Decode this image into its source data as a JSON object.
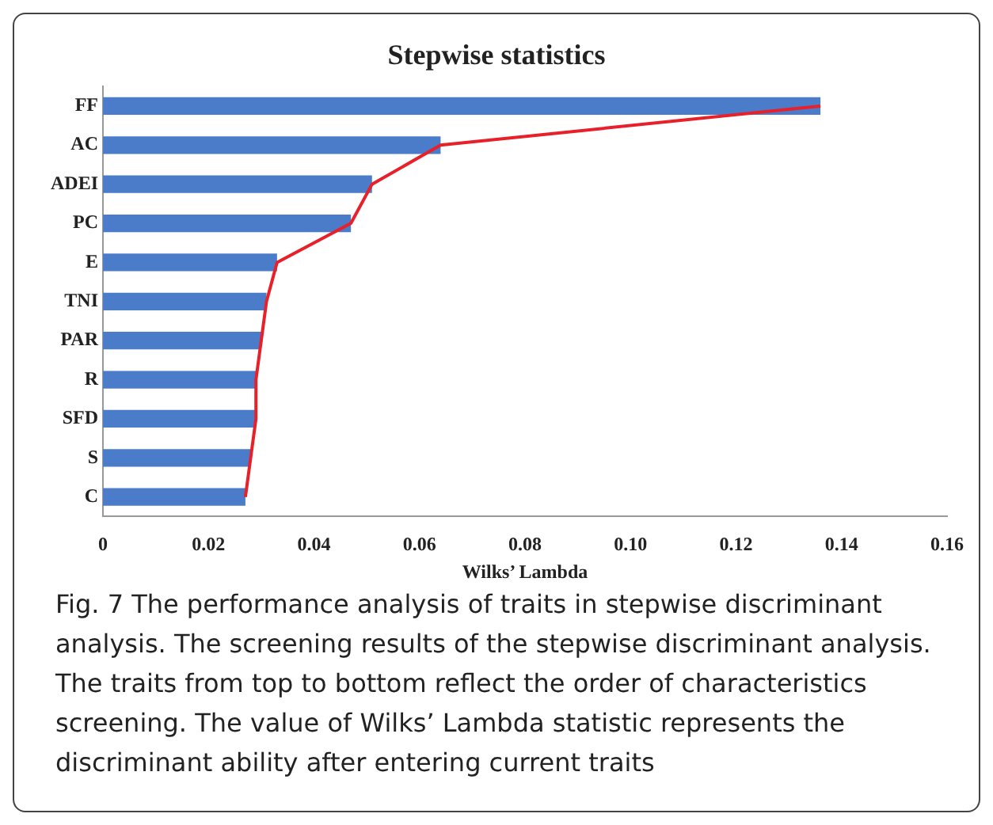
{
  "chart_data": {
    "type": "bar",
    "orientation": "horizontal",
    "title": "Stepwise statistics",
    "xlabel": "Wilks’ Lambda",
    "categories": [
      "FF",
      "AC",
      "ADEI",
      "PC",
      "E",
      "TNI",
      "PAR",
      "R",
      "SFD",
      "S",
      "C"
    ],
    "series": [
      {
        "color": "#4a7cc9",
        "values": [
          0.136,
          0.064,
          0.051,
          0.047,
          0.033,
          0.031,
          0.03,
          0.029,
          0.029,
          0.028,
          0.027
        ]
      },
      {
        "type": "line",
        "color": "#e8202a",
        "values": [
          0.136,
          0.064,
          0.051,
          0.047,
          0.033,
          0.031,
          0.03,
          0.029,
          0.029,
          0.028,
          0.027
        ]
      }
    ],
    "xlim": [
      0,
      0.16
    ],
    "xticks": [
      {
        "value": 0,
        "label": "0"
      },
      {
        "value": 0.02,
        "label": "0.02"
      },
      {
        "value": 0.04,
        "label": "0.04"
      },
      {
        "value": 0.06,
        "label": "0.06"
      },
      {
        "value": 0.08,
        "label": "0.08"
      },
      {
        "value": 0.1,
        "label": "0.10"
      },
      {
        "value": 0.12,
        "label": "0.12"
      },
      {
        "value": 0.14,
        "label": "0.14"
      },
      {
        "value": 0.16,
        "label": "0.16"
      }
    ],
    "grid": false,
    "legend": false,
    "marker": "none",
    "annotations": [
      "Fig. 7 The performance analysis of traits in stepwise discriminant analysis. The screening results of the stepwise discriminant analysis. The traits from top to bottom reflect the order of characteristics screening. The value of Wilks’ Lambda statistic represents the discriminant ability after entering current traits"
    ]
  }
}
